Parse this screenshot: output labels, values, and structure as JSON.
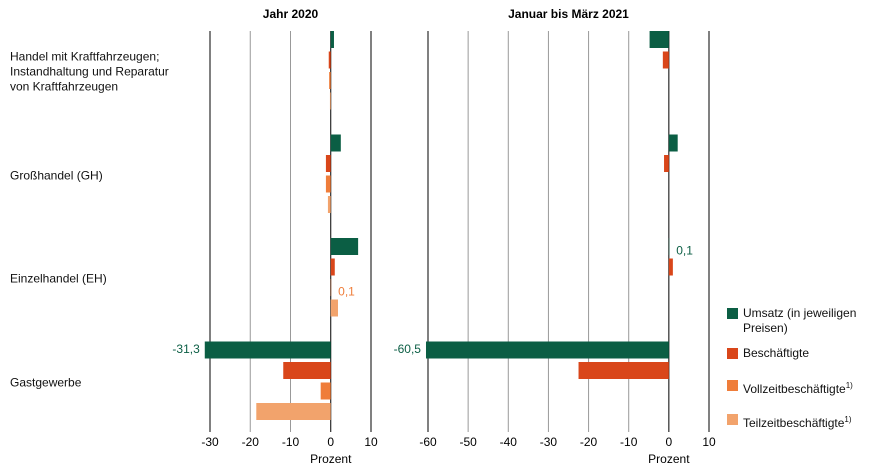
{
  "categories": [
    "Handel mit Kraftfahrzeugen; Instandhaltung und Reparatur von Kraftfahrzeugen",
    "Großhandel (GH)",
    "Einzelhandel (EH)",
    "Gastgewerbe"
  ],
  "chart_data": [
    {
      "type": "bar",
      "orientation": "horizontal",
      "title": "Jahr 2020",
      "xlabel": "Prozent",
      "xlim": [
        -30,
        10
      ],
      "xticks": [
        -30,
        -20,
        -10,
        0,
        10
      ],
      "grid": true,
      "series": [
        {
          "name": "Umsatz (in jeweiligen Preisen)",
          "color": "#0b5e44",
          "values": [
            0.8,
            2.5,
            6.8,
            -31.3
          ],
          "value_labels": [
            null,
            null,
            null,
            "-31,3"
          ]
        },
        {
          "name": "Beschäftigte",
          "color": "#d9461a",
          "values": [
            -0.5,
            -1.2,
            1.0,
            -11.8
          ]
        },
        {
          "name": "Vollzeitbeschäftigte",
          "note": "1)",
          "color": "#ef7d3a",
          "values": [
            -0.4,
            -1.2,
            0.1,
            -2.5
          ],
          "value_labels": [
            null,
            null,
            "0,1",
            null
          ]
        },
        {
          "name": "Teilzeitbeschäftigte",
          "note": "1)",
          "color": "#f2a36c",
          "values": [
            -0.2,
            -0.7,
            1.8,
            -18.5
          ]
        }
      ]
    },
    {
      "type": "bar",
      "orientation": "horizontal",
      "title": "Januar bis März 2021",
      "xlabel": "Prozent",
      "xlim": [
        -60,
        10
      ],
      "xticks": [
        -60,
        -50,
        -40,
        -30,
        -20,
        -10,
        0,
        10
      ],
      "grid": true,
      "series": [
        {
          "color": "#0b5e44",
          "values": [
            -4.8,
            2.2,
            0.1,
            -60.5
          ],
          "value_labels": [
            null,
            null,
            "0,1",
            "-60,5"
          ]
        },
        {
          "color": "#d9461a",
          "values": [
            -1.5,
            -1.2,
            1.0,
            -22.5
          ]
        }
      ]
    }
  ]
}
